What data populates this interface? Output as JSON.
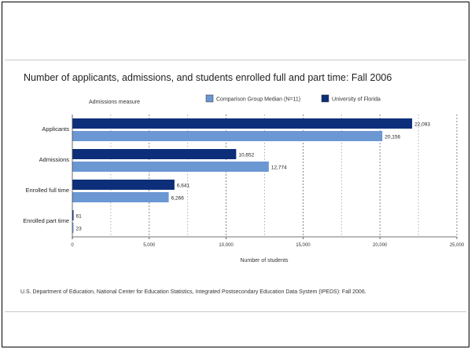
{
  "chart_data": {
    "type": "bar",
    "orientation": "horizontal",
    "title": "Number of applicants, admissions, and students enrolled full and part time: Fall 2006",
    "ylabel": "Admissions measure",
    "xlabel": "Number of students",
    "categories": [
      "Applicants",
      "Admissions",
      "Enrolled full time",
      "Enrolled part time"
    ],
    "series": [
      {
        "name": "University of Florida",
        "color": "#0d2f7a",
        "values": [
          22093,
          10652,
          6641,
          61
        ],
        "labels": [
          "22,093",
          "10,652",
          "6,641",
          "61"
        ]
      },
      {
        "name": "Comparison Group Median  (N=11)",
        "color": "#6b97d3",
        "values": [
          20156,
          12774,
          6266,
          23
        ],
        "labels": [
          "20,156",
          "12,774",
          "6,266",
          "23"
        ]
      }
    ],
    "xlim": [
      0,
      25000
    ],
    "xticks": [
      0,
      5000,
      10000,
      15000,
      20000,
      25000
    ],
    "xtick_labels": [
      "0",
      "5,000",
      "10,000",
      "15,000",
      "20,000",
      "25,000"
    ],
    "legend_order": [
      1,
      0
    ],
    "legend_position": "top",
    "grid": true
  },
  "source_note": "U.S. Department of Education, National Center for Education Statistics, Integrated Postsecondary Education Data System (IPEDS): Fall 2006."
}
